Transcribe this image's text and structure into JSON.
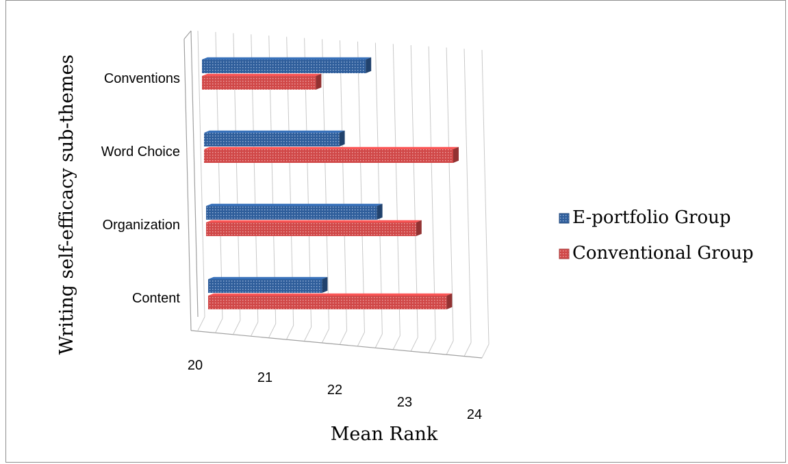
{
  "chart_data": {
    "type": "bar",
    "orientation": "horizontal",
    "style": "3d-clustered",
    "categories": [
      "Conventions",
      "Word Choice",
      "Organization",
      "Content"
    ],
    "series": [
      {
        "name": "E-portfolio Group",
        "values": [
          22.3,
          21.9,
          22.4,
          21.6
        ],
        "color": "#2f5e9b",
        "pattern": "dotted"
      },
      {
        "name": "Conventional Group",
        "values": [
          21.6,
          23.5,
          22.95,
          23.35
        ],
        "color": "#d04848",
        "pattern": "dotted"
      }
    ],
    "xlabel": "Mean Rank",
    "ylabel": "Writing self-efficacy sub-themes",
    "xlim": [
      20,
      24
    ],
    "xticks": [
      "20",
      "21",
      "22",
      "23",
      "24"
    ],
    "grid": true,
    "legend_position": "right"
  }
}
